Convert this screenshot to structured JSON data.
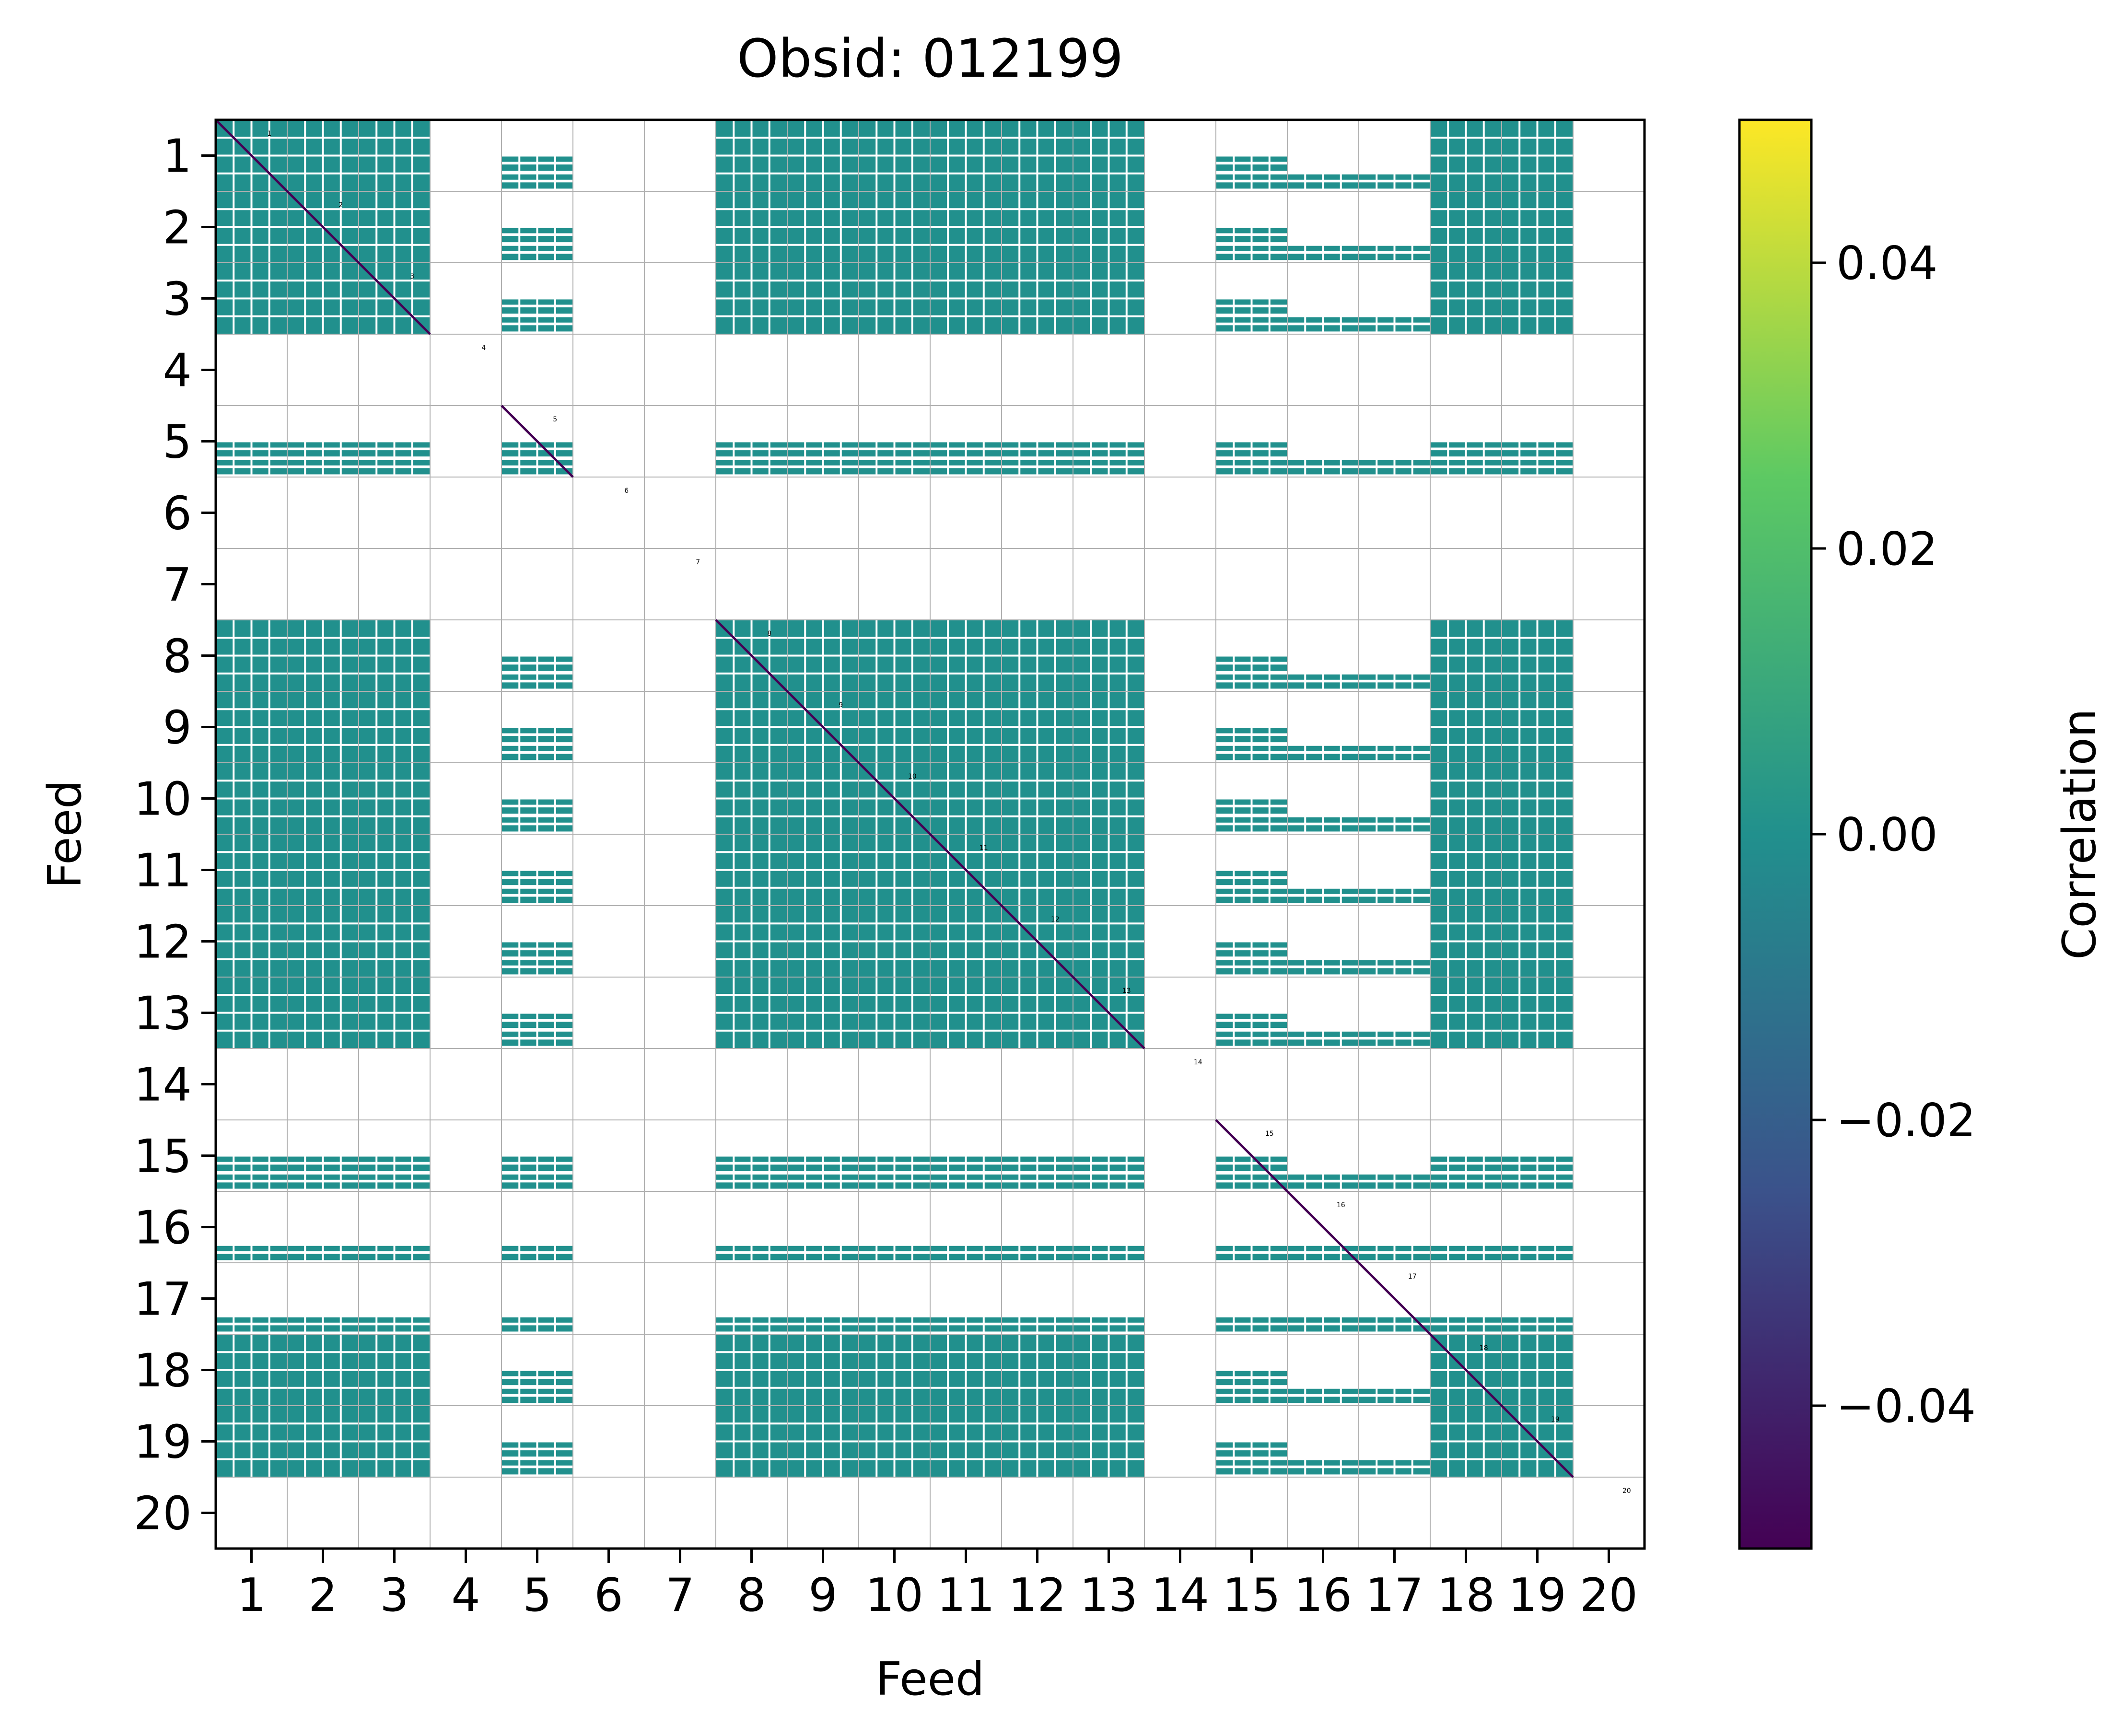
{
  "chart_data": {
    "type": "heatmap",
    "title": "Obsid: 012199",
    "xlabel": "Feed",
    "ylabel": "Feed",
    "x_tick_labels": [
      "1",
      "2",
      "3",
      "4",
      "5",
      "6",
      "7",
      "8",
      "9",
      "10",
      "11",
      "12",
      "13",
      "14",
      "15",
      "16",
      "17",
      "18",
      "19",
      "20"
    ],
    "y_tick_labels": [
      "1",
      "2",
      "3",
      "4",
      "5",
      "6",
      "7",
      "8",
      "9",
      "10",
      "11",
      "12",
      "13",
      "14",
      "15",
      "16",
      "17",
      "18",
      "19",
      "20"
    ],
    "block_labels": [
      "1",
      "2",
      "3",
      "4",
      "5",
      "6",
      "7",
      "8",
      "9",
      "10",
      "11",
      "12",
      "13",
      "14",
      "15",
      "16",
      "17",
      "18",
      "19",
      "20"
    ],
    "feeds": [
      1,
      2,
      3,
      4,
      5,
      6,
      7,
      8,
      9,
      10,
      11,
      12,
      13,
      14,
      15,
      16,
      17,
      18,
      19,
      20
    ],
    "feed_status": [
      "good",
      "good",
      "good",
      "missing",
      "partial",
      "missing",
      "missing",
      "good",
      "good",
      "good",
      "good",
      "good",
      "good",
      "missing",
      "partial",
      "sparse",
      "sparse",
      "good",
      "good",
      "missing"
    ],
    "diagonal_value": -0.05,
    "offdiagonal_value": 0.0,
    "colorbar": {
      "label": "Correlation",
      "colormap": "viridis",
      "vmin": -0.05,
      "vmax": 0.05,
      "tick_values": [
        0.04,
        0.02,
        0.0,
        -0.02,
        -0.04
      ],
      "tick_labels": [
        "0.04",
        "0.02",
        "0.00",
        "−0.02",
        "−0.04"
      ],
      "colors": [
        "#440154",
        "#3b528b",
        "#21908d",
        "#5dc963",
        "#fde725"
      ]
    },
    "cell_color": "#21908d",
    "diagonal_color": "#440154",
    "grid": true
  }
}
